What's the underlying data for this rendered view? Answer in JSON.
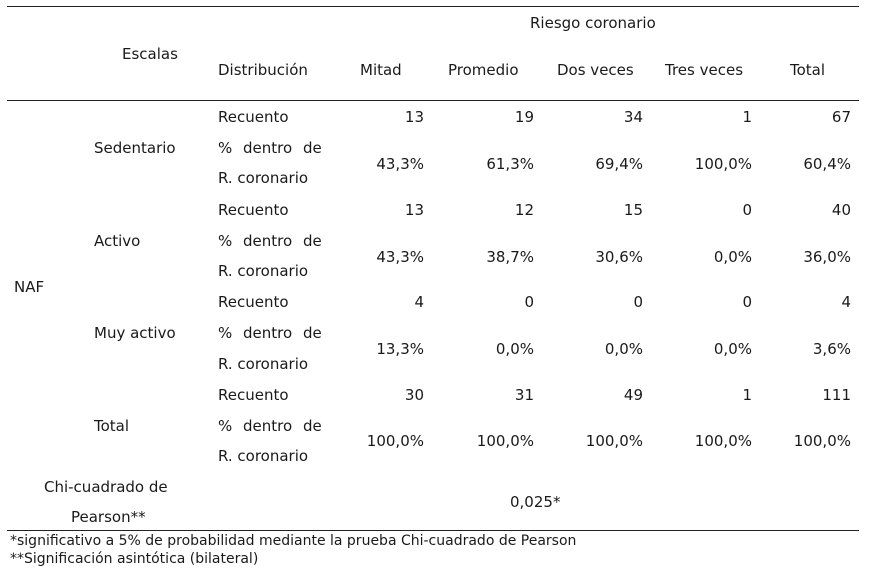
{
  "header": {
    "group_label": "Riesgo coronario",
    "escalas": "Escalas",
    "distribucion": "Distribución",
    "columns": [
      "Mitad",
      "Promedio",
      "Dos veces",
      "Tres veces",
      "Total"
    ]
  },
  "row_group": "NAF",
  "metric_labels": {
    "count": "Recuento",
    "pct_line1": "% dentro de",
    "pct_line2": "R. coronario"
  },
  "rows": [
    {
      "name": "Sedentario",
      "counts": [
        "13",
        "19",
        "34",
        "1",
        "67"
      ],
      "pcts": [
        "43,3%",
        "61,3%",
        "69,4%",
        "100,0%",
        "60,4%"
      ]
    },
    {
      "name": "Activo",
      "counts": [
        "13",
        "12",
        "15",
        "0",
        "40"
      ],
      "pcts": [
        "43,3%",
        "38,7%",
        "30,6%",
        "0,0%",
        "36,0%"
      ]
    },
    {
      "name": "Muy activo",
      "counts": [
        "4",
        "0",
        "0",
        "0",
        "4"
      ],
      "pcts": [
        "13,3%",
        "0,0%",
        "0,0%",
        "0,0%",
        "3,6%"
      ]
    },
    {
      "name": "Total",
      "counts": [
        "30",
        "31",
        "49",
        "1",
        "111"
      ],
      "pcts": [
        "100,0%",
        "100,0%",
        "100,0%",
        "100,0%",
        "100,0%"
      ]
    }
  ],
  "chi": {
    "label_line1": "Chi-cuadrado de",
    "label_line2": "Pearson**",
    "value": "0,025*"
  },
  "footnotes": [
    "*significativo a 5% de probabilidad mediante la prueba Chi-cuadrado de Pearson",
    "**Significación asintótica (bilateral)"
  ]
}
